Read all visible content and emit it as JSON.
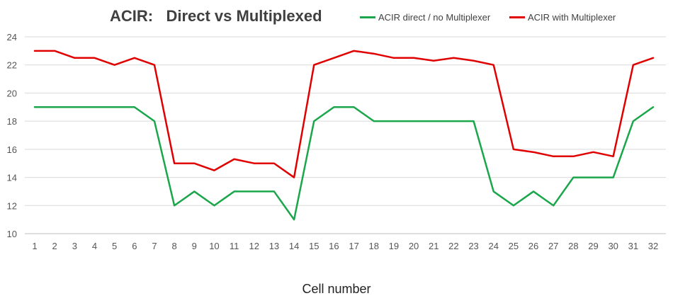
{
  "chart_data": {
    "type": "line",
    "title": "ACIR:   Direct vs Multiplexed",
    "xlabel": "Cell number",
    "ylabel": "",
    "ylim": [
      10,
      24
    ],
    "yticks": [
      10,
      12,
      14,
      16,
      18,
      20,
      22,
      24
    ],
    "grid": true,
    "legend_position": "top-right",
    "categories": [
      "1",
      "2",
      "3",
      "4",
      "5",
      "6",
      "7",
      "8",
      "9",
      "10",
      "11",
      "12",
      "13",
      "14",
      "15",
      "16",
      "17",
      "18",
      "19",
      "20",
      "21",
      "22",
      "23",
      "24",
      "25",
      "26",
      "27",
      "28",
      "29",
      "30",
      "31",
      "32"
    ],
    "series": [
      {
        "name": "ACIR direct / no Multiplexer",
        "color": "#1aa64a",
        "values": [
          19,
          19,
          19,
          19,
          19,
          19,
          18,
          12,
          13,
          12,
          13,
          13,
          13,
          11,
          18,
          19,
          19,
          18,
          18,
          18,
          18,
          18,
          18,
          13,
          12,
          13,
          12,
          14,
          14,
          14,
          18,
          19
        ]
      },
      {
        "name": "ACIR with Multiplexer",
        "color": "#e00000",
        "values": [
          23,
          23,
          22.5,
          22.5,
          22,
          22.5,
          22,
          15,
          15,
          14.5,
          15.3,
          15,
          15,
          14,
          22,
          22.5,
          23,
          22.8,
          22.5,
          22.5,
          22.3,
          22.5,
          22.3,
          22,
          16,
          15.8,
          15.5,
          15.5,
          15.8,
          15.5,
          22,
          22.5
        ]
      }
    ]
  }
}
